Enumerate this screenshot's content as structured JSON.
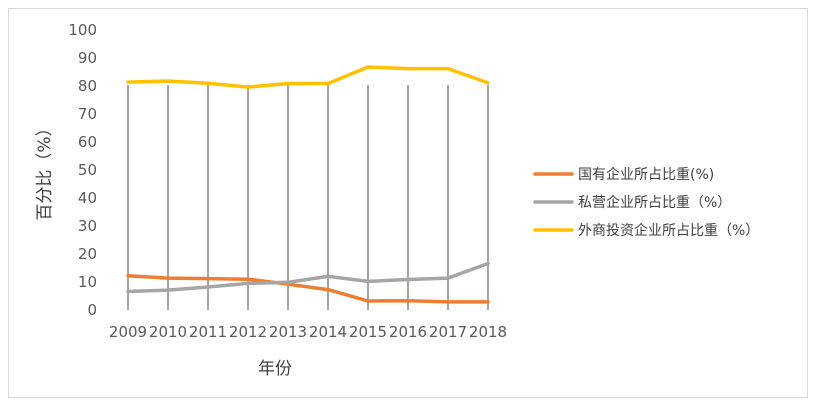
{
  "chart_data": {
    "type": "line",
    "title": "",
    "xlabel": "年份",
    "ylabel": "百分比（%）",
    "ylim": [
      0,
      100
    ],
    "yticks": [
      0,
      10,
      20,
      30,
      40,
      50,
      60,
      70,
      80,
      90,
      100
    ],
    "grid": "vertical",
    "legend_position": "right",
    "x": [
      "2009",
      "2010",
      "2011",
      "2012",
      "2013",
      "2014",
      "2015",
      "2016",
      "2017",
      "2018"
    ],
    "series": [
      {
        "name": "国有企业所占比重(%)",
        "color": "#ed7d31",
        "values": [
          12.2,
          11.4,
          11.2,
          11.0,
          9.2,
          7.3,
          3.2,
          3.3,
          2.9,
          2.9
        ]
      },
      {
        "name": "私营企业所占比重（%）",
        "color": "#a5a5a5",
        "values": [
          6.6,
          7.1,
          8.2,
          9.5,
          9.9,
          12.0,
          10.2,
          10.9,
          11.4,
          16.6
        ]
      },
      {
        "name": "外商投资企业所占比重（%）",
        "color": "#ffc000",
        "values": [
          81.4,
          81.8,
          81.0,
          79.6,
          80.9,
          80.9,
          86.8,
          86.2,
          86.2,
          81.1
        ]
      }
    ]
  }
}
